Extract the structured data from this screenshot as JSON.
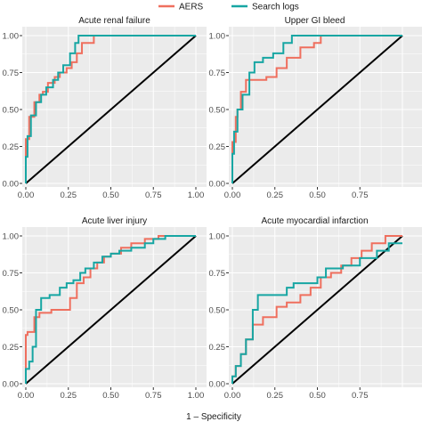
{
  "chart_data": [
    {
      "type": "line",
      "title": "Acute renal failure",
      "xlim": [
        0,
        1
      ],
      "ylim": [
        0,
        1
      ],
      "xticks": [
        "0.00",
        "0.25",
        "0.50",
        "0.75",
        "1.00"
      ],
      "yticks": [
        "0.00",
        "0.25",
        "0.50",
        "0.75",
        "1.00"
      ],
      "series": [
        {
          "name": "AERS",
          "color": "#ef6f5e",
          "x": [
            0,
            0,
            0.02,
            0.02,
            0.05,
            0.05,
            0.08,
            0.08,
            0.1,
            0.1,
            0.13,
            0.13,
            0.17,
            0.17,
            0.2,
            0.2,
            0.24,
            0.24,
            0.27,
            0.27,
            0.3,
            0.3,
            0.33,
            0.33,
            0.4,
            0.4,
            1.0
          ],
          "y": [
            0,
            0.3,
            0.3,
            0.45,
            0.45,
            0.55,
            0.55,
            0.6,
            0.6,
            0.62,
            0.62,
            0.68,
            0.68,
            0.72,
            0.72,
            0.75,
            0.75,
            0.78,
            0.78,
            0.82,
            0.82,
            0.88,
            0.88,
            0.95,
            0.95,
            1.0,
            1.0
          ]
        },
        {
          "name": "Search logs",
          "color": "#17a6a3",
          "x": [
            0,
            0,
            0.01,
            0.01,
            0.03,
            0.03,
            0.06,
            0.06,
            0.09,
            0.09,
            0.12,
            0.12,
            0.16,
            0.16,
            0.19,
            0.19,
            0.22,
            0.22,
            0.26,
            0.26,
            0.29,
            0.29,
            0.31,
            0.31,
            1.0
          ],
          "y": [
            0,
            0.18,
            0.18,
            0.32,
            0.32,
            0.46,
            0.46,
            0.55,
            0.55,
            0.6,
            0.6,
            0.65,
            0.65,
            0.7,
            0.7,
            0.75,
            0.75,
            0.8,
            0.8,
            0.88,
            0.88,
            0.95,
            0.95,
            1.0,
            1.0
          ]
        }
      ],
      "reference_line": {
        "x": [
          0,
          1
        ],
        "y": [
          0,
          1
        ],
        "color": "#000000"
      }
    },
    {
      "type": "line",
      "title": "Upper GI bleed",
      "xlim": [
        0,
        1
      ],
      "ylim": [
        0,
        1
      ],
      "xticks": [
        "0.00",
        "0.25",
        "0.50",
        "0.75"
      ],
      "yticks": [
        "0.00",
        "0.25",
        "0.50",
        "0.75",
        "1.00"
      ],
      "series": [
        {
          "name": "AERS",
          "color": "#ef6f5e",
          "x": [
            0,
            0,
            0.02,
            0.02,
            0.03,
            0.03,
            0.05,
            0.05,
            0.08,
            0.08,
            0.2,
            0.2,
            0.26,
            0.26,
            0.32,
            0.32,
            0.4,
            0.4,
            0.48,
            0.48,
            0.52,
            0.52
          ],
          "y": [
            0,
            0.28,
            0.28,
            0.45,
            0.45,
            0.5,
            0.5,
            0.62,
            0.62,
            0.7,
            0.7,
            0.72,
            0.72,
            0.78,
            0.78,
            0.85,
            0.85,
            0.92,
            0.92,
            0.95,
            0.95,
            1.0
          ]
        },
        {
          "name": "Search logs",
          "color": "#17a6a3",
          "x": [
            0,
            0,
            0.01,
            0.01,
            0.03,
            0.03,
            0.06,
            0.06,
            0.1,
            0.1,
            0.13,
            0.13,
            0.18,
            0.18,
            0.24,
            0.24,
            0.3,
            0.3,
            0.35,
            0.35,
            1.0
          ],
          "y": [
            0,
            0.2,
            0.2,
            0.35,
            0.35,
            0.5,
            0.5,
            0.6,
            0.6,
            0.75,
            0.75,
            0.82,
            0.82,
            0.85,
            0.85,
            0.88,
            0.88,
            0.95,
            0.95,
            1.0,
            1.0
          ]
        }
      ],
      "reference_line": {
        "x": [
          0,
          1
        ],
        "y": [
          0,
          1
        ],
        "color": "#000000"
      }
    },
    {
      "type": "line",
      "title": "Acute liver injury",
      "xlim": [
        0,
        1
      ],
      "ylim": [
        0,
        1
      ],
      "xticks": [
        "0.00",
        "0.25",
        "0.50",
        "0.75",
        "1.00"
      ],
      "yticks": [
        "0.00",
        "0.25",
        "0.50",
        "0.75",
        "1.00"
      ],
      "series": [
        {
          "name": "AERS",
          "color": "#ef6f5e",
          "x": [
            0,
            0,
            0.01,
            0.01,
            0.05,
            0.05,
            0.08,
            0.08,
            0.15,
            0.15,
            0.2,
            0.2,
            0.26,
            0.26,
            0.3,
            0.3,
            0.34,
            0.34,
            0.38,
            0.38,
            0.42,
            0.42,
            0.46,
            0.46,
            0.5,
            0.5,
            0.56,
            0.56,
            0.62,
            0.62,
            0.7,
            0.7,
            0.78,
            0.78,
            1.0
          ],
          "y": [
            0,
            0.33,
            0.33,
            0.35,
            0.35,
            0.45,
            0.45,
            0.48,
            0.48,
            0.5,
            0.5,
            0.5,
            0.5,
            0.58,
            0.58,
            0.68,
            0.68,
            0.72,
            0.72,
            0.78,
            0.78,
            0.82,
            0.82,
            0.86,
            0.86,
            0.88,
            0.88,
            0.92,
            0.92,
            0.95,
            0.95,
            0.98,
            0.98,
            1.0,
            1.0
          ]
        },
        {
          "name": "Search logs",
          "color": "#17a6a3",
          "x": [
            0,
            0,
            0.02,
            0.02,
            0.04,
            0.04,
            0.06,
            0.06,
            0.09,
            0.09,
            0.14,
            0.14,
            0.2,
            0.2,
            0.24,
            0.24,
            0.28,
            0.28,
            0.32,
            0.32,
            0.35,
            0.35,
            0.4,
            0.4,
            0.45,
            0.45,
            0.5,
            0.5,
            0.55,
            0.55,
            0.62,
            0.62,
            0.7,
            0.7,
            0.75,
            0.75,
            0.82,
            0.82,
            1.0
          ],
          "y": [
            0,
            0.1,
            0.1,
            0.15,
            0.15,
            0.25,
            0.25,
            0.5,
            0.5,
            0.58,
            0.58,
            0.6,
            0.6,
            0.65,
            0.65,
            0.68,
            0.68,
            0.7,
            0.7,
            0.75,
            0.75,
            0.78,
            0.78,
            0.82,
            0.82,
            0.86,
            0.86,
            0.88,
            0.88,
            0.9,
            0.9,
            0.92,
            0.92,
            0.95,
            0.95,
            0.98,
            0.98,
            1.0,
            1.0
          ]
        }
      ],
      "reference_line": {
        "x": [
          0,
          1
        ],
        "y": [
          0,
          1
        ],
        "color": "#000000"
      }
    },
    {
      "type": "line",
      "title": "Acute myocardial infarction",
      "xlim": [
        0,
        1
      ],
      "ylim": [
        0,
        1
      ],
      "xticks": [
        "0.00",
        "0.25",
        "0.50",
        "0.75"
      ],
      "yticks": [
        "0.00",
        "0.25",
        "0.50",
        "0.75",
        "1.00"
      ],
      "series": [
        {
          "name": "AERS",
          "color": "#ef6f5e",
          "x": [
            0,
            0,
            0.02,
            0.02,
            0.05,
            0.05,
            0.08,
            0.08,
            0.12,
            0.12,
            0.18,
            0.18,
            0.26,
            0.26,
            0.32,
            0.32,
            0.4,
            0.4,
            0.46,
            0.46,
            0.52,
            0.52,
            0.58,
            0.58,
            0.64,
            0.64,
            0.7,
            0.7,
            0.76,
            0.76,
            0.82,
            0.82,
            0.9,
            0.9,
            1.0
          ],
          "y": [
            0,
            0.05,
            0.05,
            0.12,
            0.12,
            0.2,
            0.2,
            0.3,
            0.3,
            0.4,
            0.4,
            0.45,
            0.45,
            0.52,
            0.52,
            0.55,
            0.55,
            0.6,
            0.6,
            0.65,
            0.65,
            0.72,
            0.72,
            0.75,
            0.75,
            0.8,
            0.8,
            0.85,
            0.85,
            0.9,
            0.9,
            0.95,
            0.95,
            1.0,
            1.0
          ]
        },
        {
          "name": "Search logs",
          "color": "#17a6a3",
          "x": [
            0,
            0,
            0.02,
            0.02,
            0.05,
            0.05,
            0.08,
            0.08,
            0.12,
            0.12,
            0.15,
            0.15,
            0.22,
            0.22,
            0.32,
            0.32,
            0.36,
            0.36,
            0.5,
            0.5,
            0.55,
            0.55,
            0.65,
            0.65,
            0.75,
            0.75,
            0.85,
            0.85,
            0.92,
            0.92,
            1.0
          ],
          "y": [
            0,
            0.05,
            0.05,
            0.12,
            0.12,
            0.2,
            0.2,
            0.3,
            0.3,
            0.5,
            0.5,
            0.6,
            0.6,
            0.6,
            0.6,
            0.65,
            0.65,
            0.68,
            0.68,
            0.72,
            0.72,
            0.78,
            0.78,
            0.8,
            0.8,
            0.85,
            0.85,
            0.9,
            0.9,
            0.95,
            0.95
          ]
        }
      ],
      "reference_line": {
        "x": [
          0,
          1
        ],
        "y": [
          0,
          1
        ],
        "color": "#000000"
      }
    }
  ],
  "legend": {
    "items": [
      {
        "label": "AERS",
        "color": "#ef6f5e"
      },
      {
        "label": "Search logs",
        "color": "#17a6a3"
      }
    ],
    "placement": "top-center"
  },
  "xlabel": "1 – Specificity",
  "colors": {
    "panel_bg": "#ebebeb",
    "grid": "#ffffff",
    "strip": "#ffffff"
  }
}
